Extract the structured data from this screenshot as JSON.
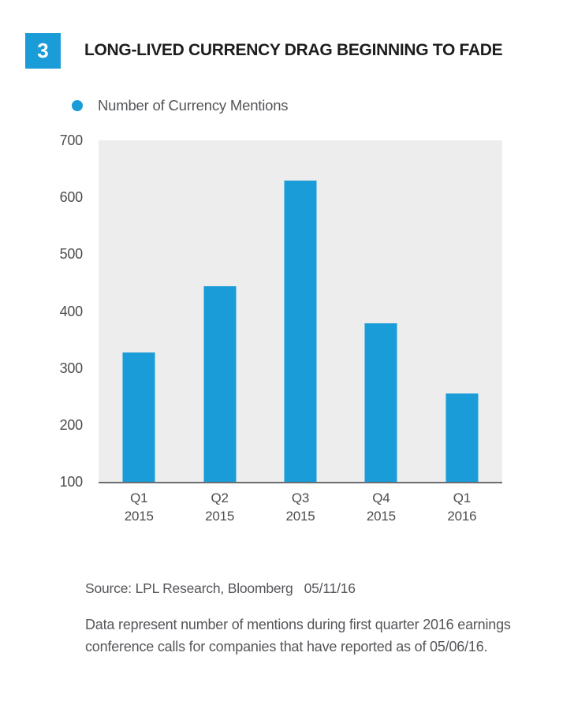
{
  "figure": {
    "number": "3",
    "title": "LONG-LIVED CURRENCY DRAG BEGINNING TO FADE"
  },
  "legend": {
    "label": "Number of Currency Mentions"
  },
  "chart_data": {
    "type": "bar",
    "title": "Number of Currency Mentions",
    "categories": [
      "Q1 2015",
      "Q2 2015",
      "Q3 2015",
      "Q4 2015",
      "Q1 2016"
    ],
    "values": [
      327,
      443,
      630,
      378,
      255
    ],
    "xlabel": "",
    "ylabel": "",
    "ylim": [
      100,
      700
    ],
    "yticks": [
      700,
      600,
      500,
      400,
      300,
      200,
      100
    ],
    "grid": false,
    "legend_position": "top-left",
    "bar_color": "#199cd8",
    "plot_background": "#ededee",
    "axis_line_color": "#6d6e71"
  },
  "footer": {
    "source": "Source: LPL Research, Bloomberg",
    "source_date": "05/11/16",
    "note": "Data represent number of mentions during first quarter 2016 earnings conference calls for companies that have reported as of 05/06/16."
  },
  "colors": {
    "accent_blue": "#199cd8",
    "title_text": "#1d1d1f",
    "body_text": "#55565a",
    "plot_bg": "#ededee",
    "axis_line": "#6d6e71"
  }
}
